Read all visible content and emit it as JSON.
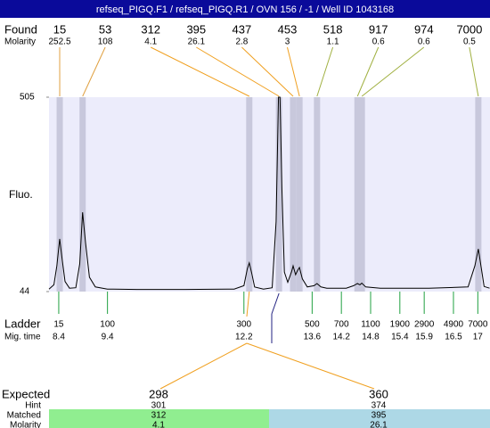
{
  "title": "refseq_PIGQ.F1 / refseq_PIGQ.R1 / OVN 156 / -1 / Well ID 1043168",
  "found": {
    "label": "Found",
    "molarity_label": "Molarity",
    "peaks": [
      {
        "size": 15,
        "molarity": 252.5,
        "time": 8.42,
        "color": "#e0a040"
      },
      {
        "size": 53,
        "molarity": 108,
        "time": 8.89,
        "color": "#e0a040"
      },
      {
        "size": 312,
        "molarity": 4.1,
        "time": 12.31,
        "color": "#f0a020"
      },
      {
        "size": 395,
        "molarity": 26.1,
        "time": 12.92,
        "color": "#f0a020"
      },
      {
        "size": 437,
        "molarity": 2.8,
        "time": 13.21,
        "color": "#f0a020"
      },
      {
        "size": 453,
        "molarity": 3,
        "time": 13.34,
        "color": "#f0a020"
      },
      {
        "size": 518,
        "molarity": 1.1,
        "time": 13.7,
        "color": "#a0b040"
      },
      {
        "size": 917,
        "molarity": 0.6,
        "time": 14.53,
        "color": "#a0b040"
      },
      {
        "size": 974,
        "molarity": 0.6,
        "time": 14.62,
        "color": "#a0b040"
      },
      {
        "size": 7000,
        "molarity": 0.5,
        "time": 17.01,
        "color": "#a0b040"
      }
    ]
  },
  "fluo_label": "Fluo.",
  "chart_data": {
    "type": "line",
    "x": [
      8.2,
      8.3,
      8.36,
      8.42,
      8.47,
      8.53,
      8.62,
      8.75,
      8.83,
      8.89,
      8.95,
      9.03,
      9.15,
      9.4,
      10,
      11,
      12,
      12.2,
      12.27,
      12.31,
      12.36,
      12.42,
      12.6,
      12.78,
      12.86,
      12.91,
      12.94,
      12.98,
      13.03,
      13.1,
      13.18,
      13.21,
      13.26,
      13.3,
      13.34,
      13.4,
      13.5,
      13.64,
      13.7,
      13.78,
      13.9,
      14.3,
      14.45,
      14.53,
      14.58,
      14.62,
      14.7,
      15,
      16,
      16.8,
      16.94,
      17.01,
      17.07,
      17.13,
      17.24
    ],
    "values": [
      50,
      60,
      105,
      169,
      120,
      68,
      52,
      53,
      110,
      232,
      160,
      78,
      55,
      50,
      49,
      49,
      50,
      58,
      98,
      112,
      88,
      55,
      50,
      53,
      210,
      505,
      505,
      290,
      90,
      66,
      92,
      105,
      84,
      94,
      101,
      74,
      55,
      58,
      63,
      55,
      52,
      52,
      58,
      63,
      60,
      64,
      55,
      52,
      52,
      55,
      105,
      145,
      100,
      56,
      52
    ],
    "xlim": [
      8.2,
      17.25
    ],
    "ylim": [
      44,
      505
    ],
    "yticks": [
      44,
      505
    ],
    "color": "#000000"
  },
  "ladder": {
    "label": "Ladder",
    "time_label": "Mig. time",
    "sizes": [
      15,
      100,
      300,
      500,
      700,
      1100,
      1900,
      2900,
      4900,
      7000
    ],
    "times": [
      8.4,
      9.4,
      12.2,
      13.6,
      14.2,
      14.8,
      15.4,
      15.9,
      16.5,
      17
    ],
    "color": "#20a040"
  },
  "expected": {
    "label": "Expected",
    "hint_label": "Hint",
    "matched_label": "Matched",
    "molarity_label": "Molarity",
    "columns": [
      {
        "expected": 298,
        "hint": 301,
        "matched": 312,
        "molarity": 4.1,
        "color": "#90ee90"
      },
      {
        "expected": 360,
        "hint": 374,
        "matched": 395,
        "molarity": 26.1,
        "color": "#add8e6"
      }
    ]
  }
}
